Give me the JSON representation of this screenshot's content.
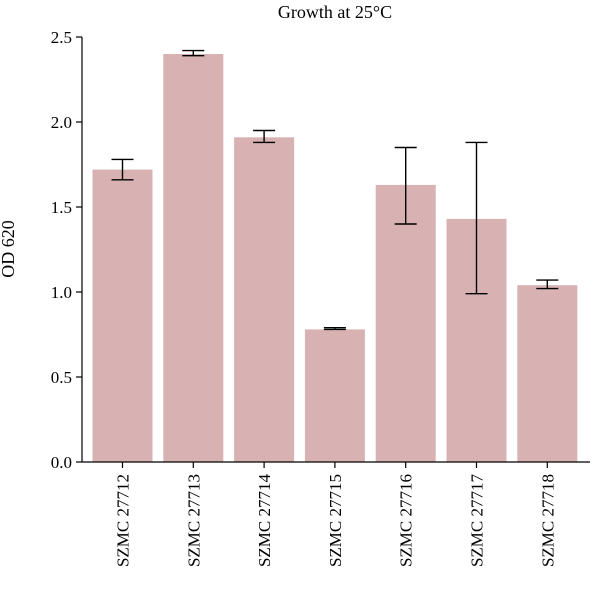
{
  "chart_data": {
    "type": "bar",
    "title": "Growth at 25°C",
    "xlabel": "",
    "ylabel": "OD 620",
    "ylim": [
      0,
      2.5
    ],
    "yticks": [
      "0.0",
      "0.5",
      "1.0",
      "1.5",
      "2.0",
      "2.5"
    ],
    "grid": false,
    "bar_color": "#d8b2b2",
    "categories": [
      "SZMC 27712",
      "SZMC 27713",
      "SZMC 27714",
      "SZMC 27715",
      "SZMC 27716",
      "SZMC 27717",
      "SZMC 27718"
    ],
    "values": [
      1.72,
      2.4,
      1.91,
      0.78,
      1.63,
      1.43,
      1.04
    ],
    "error_low": [
      1.66,
      2.39,
      1.88,
      0.78,
      1.4,
      0.99,
      1.02
    ],
    "error_high": [
      1.78,
      2.42,
      1.95,
      0.79,
      1.85,
      1.88,
      1.07
    ]
  }
}
